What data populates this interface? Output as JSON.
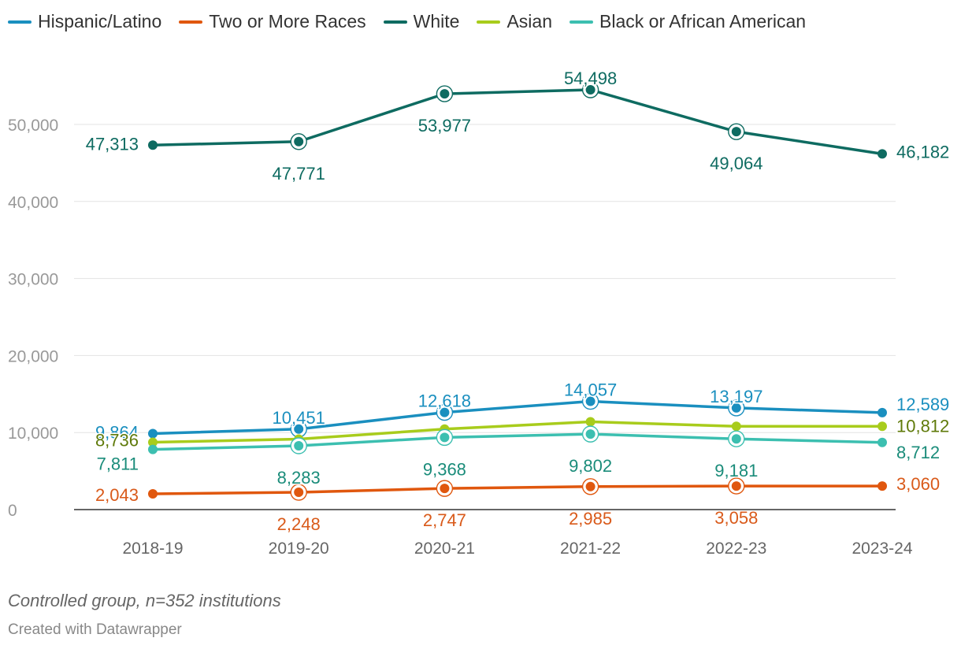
{
  "chart_data": {
    "type": "line",
    "categories": [
      "2018-19",
      "2019-20",
      "2020-21",
      "2021-22",
      "2022-23",
      "2023-24"
    ],
    "ylim": [
      0,
      55000
    ],
    "yticks": [
      0,
      10000,
      20000,
      30000,
      40000,
      50000
    ],
    "ytick_labels": [
      "0",
      "10,000",
      "20,000",
      "30,000",
      "40,000",
      "50,000"
    ],
    "grid": true,
    "legend_position": "top-left",
    "series": [
      {
        "name": "Hispanic/Latino",
        "color": "#1a8fbf",
        "label_color": "#1a8fbf",
        "values": [
          9864,
          10451,
          12618,
          14057,
          13197,
          12589
        ],
        "labels": [
          "9,864",
          "10,451",
          "12,618",
          "14,057",
          "13,197",
          "12,589"
        ]
      },
      {
        "name": "Two or More Races",
        "color": "#e0570e",
        "label_color": "#d95a1a",
        "values": [
          2043,
          2248,
          2747,
          2985,
          3058,
          3060
        ],
        "labels": [
          "2,043",
          "2,248",
          "2,747",
          "2,985",
          "3,058",
          "3,060"
        ]
      },
      {
        "name": "White",
        "color": "#0e6b61",
        "label_color": "#0e6b61",
        "values": [
          47313,
          47771,
          53977,
          54498,
          49064,
          46182
        ],
        "labels": [
          "47,313",
          "47,771",
          "53,977",
          "54,498",
          "49,064",
          "46,182"
        ]
      },
      {
        "name": "Asian",
        "color": "#a8cc1c",
        "label_color": "#5f7a0a",
        "values": [
          8736,
          9150,
          10450,
          11400,
          10812,
          10812
        ],
        "labels": [
          "8,736",
          "",
          "",
          "",
          "",
          "10,812"
        ]
      },
      {
        "name": "Black or African American",
        "color": "#3cbfb0",
        "label_color": "#1a8c7a",
        "values": [
          7811,
          8283,
          9368,
          9802,
          9181,
          8712
        ],
        "labels": [
          "7,811",
          "8,283",
          "9,368",
          "9,802",
          "9,181",
          "8,712"
        ]
      }
    ]
  },
  "note": "Controlled group, n=352 institutions",
  "credit": "Created with Datawrapper"
}
